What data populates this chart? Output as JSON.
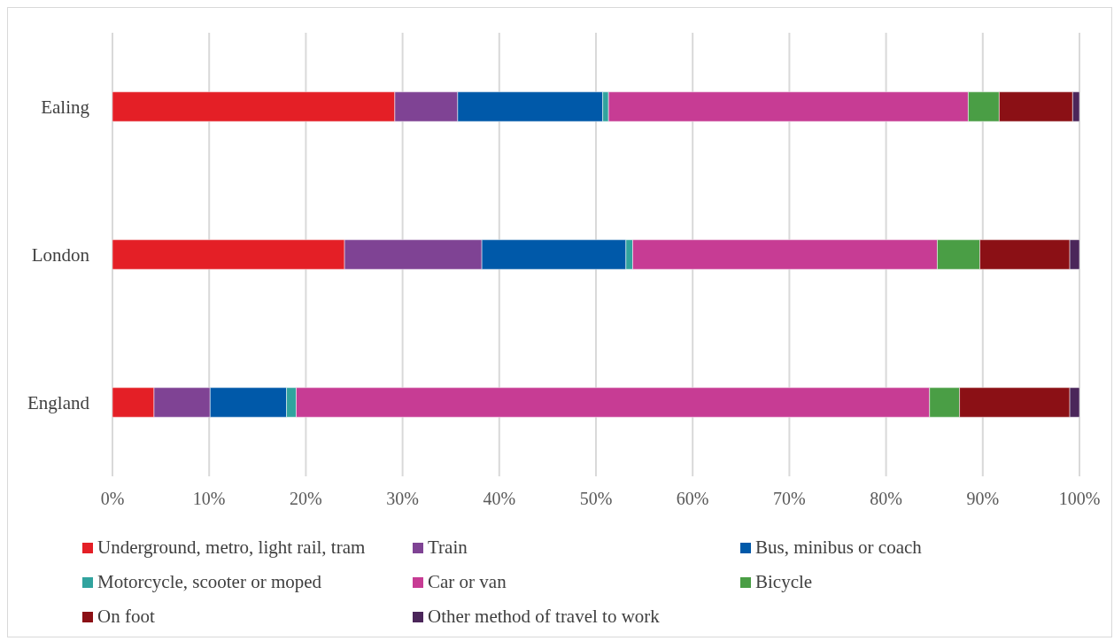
{
  "chart_data": {
    "type": "bar",
    "orientation": "horizontal",
    "stacked": true,
    "categories": [
      "Ealing",
      "London",
      "England"
    ],
    "series": [
      {
        "name": "Underground, metro, light rail, tram",
        "color": "#e41f26",
        "values": [
          29.2,
          24.0,
          4.3
        ]
      },
      {
        "name": "Train",
        "color": "#7f4394",
        "values": [
          6.5,
          14.2,
          5.8
        ]
      },
      {
        "name": "Bus, minibus or coach",
        "color": "#0059a9",
        "values": [
          15.0,
          14.9,
          7.9
        ]
      },
      {
        "name": "Motorcycle, scooter or moped",
        "color": "#31a39e",
        "values": [
          0.6,
          0.7,
          1.0
        ]
      },
      {
        "name": "Car or van",
        "color": "#c73c94",
        "values": [
          37.2,
          31.5,
          65.5
        ]
      },
      {
        "name": "Bicycle",
        "color": "#4a9e45",
        "values": [
          3.2,
          4.4,
          3.1
        ]
      },
      {
        "name": "On foot",
        "color": "#8b1015",
        "values": [
          7.6,
          9.3,
          11.4
        ]
      },
      {
        "name": "Other method of travel to work",
        "color": "#4b265a",
        "values": [
          0.7,
          1.0,
          1.0
        ]
      }
    ],
    "xlim": [
      0,
      100
    ],
    "xticks": [
      {
        "value": 0,
        "label": "0%"
      },
      {
        "value": 10,
        "label": "10%"
      },
      {
        "value": 20,
        "label": "20%"
      },
      {
        "value": 30,
        "label": "30%"
      },
      {
        "value": 40,
        "label": "40%"
      },
      {
        "value": 50,
        "label": "50%"
      },
      {
        "value": 60,
        "label": "60%"
      },
      {
        "value": 70,
        "label": "70%"
      },
      {
        "value": 80,
        "label": "80%"
      },
      {
        "value": 90,
        "label": "90%"
      },
      {
        "value": 100,
        "label": "100%"
      }
    ],
    "grid": "x",
    "legend": "bottom"
  }
}
